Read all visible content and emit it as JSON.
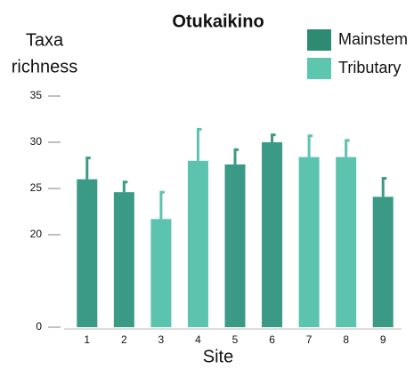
{
  "chart_data": {
    "type": "bar",
    "title": "Otukaikino",
    "ylabel": [
      "Taxa",
      "richness"
    ],
    "xlabel": "Site",
    "categories": [
      "1",
      "2",
      "3",
      "4",
      "5",
      "6",
      "7",
      "8",
      "9"
    ],
    "series": [
      {
        "name": "Mainstem",
        "color": "#3a9a86",
        "legend_color": "#2e8a73",
        "values": [
          26.0,
          24.6,
          null,
          null,
          27.6,
          30.0,
          null,
          null,
          24.1
        ],
        "errors": [
          2.3,
          1.1,
          null,
          null,
          1.6,
          0.8,
          null,
          null,
          2.0
        ]
      },
      {
        "name": "Tributary",
        "color": "#5cc3ae",
        "legend_color": "#5cc6ae",
        "values": [
          null,
          null,
          21.7,
          28.0,
          null,
          null,
          28.4,
          28.4,
          null
        ],
        "errors": [
          null,
          null,
          2.9,
          3.4,
          null,
          null,
          2.3,
          1.8,
          null
        ]
      }
    ],
    "ylim": [
      10,
      35
    ],
    "yticks": [
      {
        "value": 10,
        "label": "0"
      },
      20,
      25,
      30,
      35
    ]
  }
}
